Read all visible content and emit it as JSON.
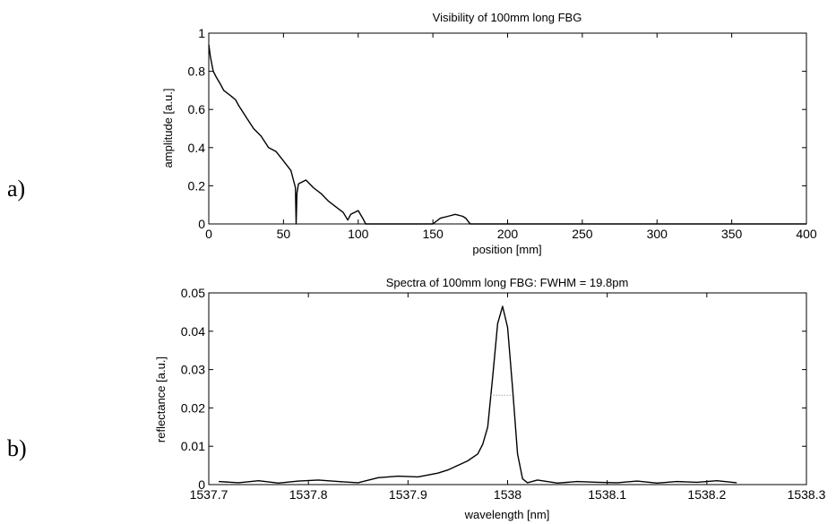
{
  "panel_labels": [
    "a)",
    "b)"
  ],
  "chart_data": [
    {
      "type": "line",
      "title": "Visibility of 100mm long FBG",
      "xlabel": "position [mm]",
      "ylabel": "amplitude [a.u.]",
      "xlim": [
        0,
        400
      ],
      "ylim": [
        0,
        1
      ],
      "xticks": [
        0,
        50,
        100,
        150,
        200,
        250,
        300,
        350,
        400
      ],
      "yticks": [
        0,
        0.2,
        0.4,
        0.6,
        0.8,
        1
      ],
      "xtick_labels": [
        "0",
        "50",
        "100",
        "150",
        "200",
        "250",
        "300",
        "350",
        "400"
      ],
      "ytick_labels": [
        "0",
        "0.2",
        "0.4",
        "0.6",
        "0.8",
        "1"
      ],
      "grid": false,
      "series": [
        {
          "color": "#000000",
          "x": [
            0,
            1,
            2,
            3,
            5,
            8,
            10,
            15,
            18,
            20,
            25,
            30,
            35,
            40,
            45,
            50,
            55,
            58,
            58.5,
            59,
            60,
            65,
            70,
            75,
            80,
            85,
            90,
            93,
            95,
            100,
            103,
            105,
            150,
            155,
            160,
            165,
            170,
            172,
            174,
            175,
            400
          ],
          "y": [
            0.94,
            0.88,
            0.84,
            0.8,
            0.77,
            0.73,
            0.7,
            0.67,
            0.65,
            0.62,
            0.56,
            0.5,
            0.46,
            0.4,
            0.38,
            0.33,
            0.28,
            0.19,
            0.0,
            0.16,
            0.21,
            0.23,
            0.19,
            0.16,
            0.12,
            0.09,
            0.06,
            0.02,
            0.05,
            0.07,
            0.03,
            0.0,
            0.0,
            0.03,
            0.04,
            0.05,
            0.04,
            0.03,
            0.01,
            0.0,
            0.0
          ]
        }
      ]
    },
    {
      "type": "line",
      "title": "Spectra of 100mm long FBG: FWHM = 19.8pm",
      "xlabel": "wavelength [nm]",
      "ylabel": "reflectance [a.u.]",
      "xlim": [
        1537.7,
        1538.3
      ],
      "ylim": [
        0,
        0.05
      ],
      "xticks": [
        1537.7,
        1537.8,
        1537.9,
        1538.0,
        1538.1,
        1538.2,
        1538.3
      ],
      "yticks": [
        0,
        0.01,
        0.02,
        0.03,
        0.04,
        0.05
      ],
      "xtick_labels": [
        "1537.7",
        "1537.8",
        "1537.9",
        "1538",
        "1538.1",
        "1538.2",
        "1538.3"
      ],
      "ytick_labels": [
        "0",
        "0.01",
        "0.02",
        "0.03",
        "0.04",
        "0.05"
      ],
      "grid": false,
      "series": [
        {
          "color": "#000000",
          "x": [
            1537.71,
            1537.73,
            1537.75,
            1537.77,
            1537.79,
            1537.81,
            1537.83,
            1537.85,
            1537.87,
            1537.89,
            1537.91,
            1537.93,
            1537.94,
            1537.95,
            1537.96,
            1537.97,
            1537.975,
            1537.98,
            1537.985,
            1537.99,
            1537.995,
            1538.0,
            1538.005,
            1538.01,
            1538.015,
            1538.02,
            1538.03,
            1538.05,
            1538.07,
            1538.09,
            1538.11,
            1538.13,
            1538.15,
            1538.17,
            1538.19,
            1538.21,
            1538.23
          ],
          "y": [
            0.0008,
            0.0005,
            0.001,
            0.0004,
            0.0009,
            0.0012,
            0.0008,
            0.0005,
            0.0018,
            0.0022,
            0.002,
            0.003,
            0.0038,
            0.005,
            0.0062,
            0.008,
            0.0105,
            0.015,
            0.028,
            0.042,
            0.0465,
            0.041,
            0.025,
            0.008,
            0.0015,
            0.0005,
            0.0012,
            0.0004,
            0.0008,
            0.0006,
            0.0005,
            0.0009,
            0.0004,
            0.0008,
            0.0006,
            0.001,
            0.0005
          ]
        }
      ],
      "fwhm_marker": {
        "x_from": 1537.983,
        "x_to": 1538.003,
        "y": 0.0233,
        "color": "#777777"
      }
    }
  ]
}
